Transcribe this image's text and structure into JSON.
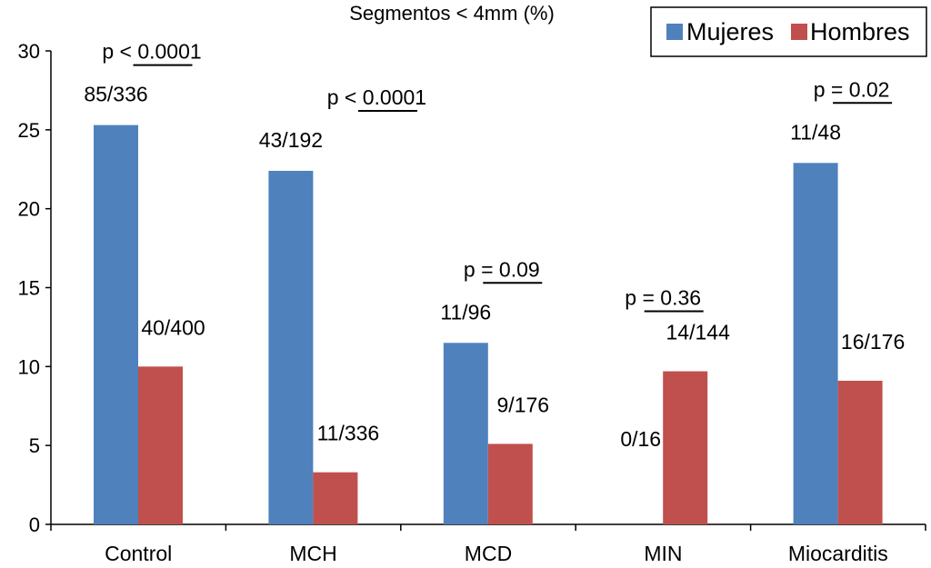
{
  "chart_data": {
    "type": "bar",
    "title": "Segmentos < 4mm (%)",
    "xlabel": "",
    "ylabel": "",
    "ylim": [
      0,
      30
    ],
    "yticks": [
      0,
      5,
      10,
      15,
      20,
      25,
      30
    ],
    "grid": false,
    "legend_position": "top-right",
    "categories": [
      "Control",
      "MCH",
      "MCD",
      "MIN",
      "Miocarditis"
    ],
    "series": [
      {
        "name": "Mujeres",
        "color": "#4F81BD",
        "values": [
          25.3,
          22.4,
          11.5,
          0,
          22.9
        ],
        "labels": [
          "85/336",
          "43/192",
          "11/96",
          "0/16",
          "11/48"
        ]
      },
      {
        "name": "Hombres",
        "color": "#C0504D",
        "values": [
          10,
          3.3,
          5.1,
          9.7,
          9.1
        ],
        "labels": [
          "40/400",
          "11/336",
          "9/176",
          "14/144",
          "16/176"
        ]
      }
    ],
    "pvalues": [
      "p < 0.0001",
      "p < 0.0001",
      "p = 0.09",
      "p = 0.36",
      "p = 0.02"
    ]
  }
}
